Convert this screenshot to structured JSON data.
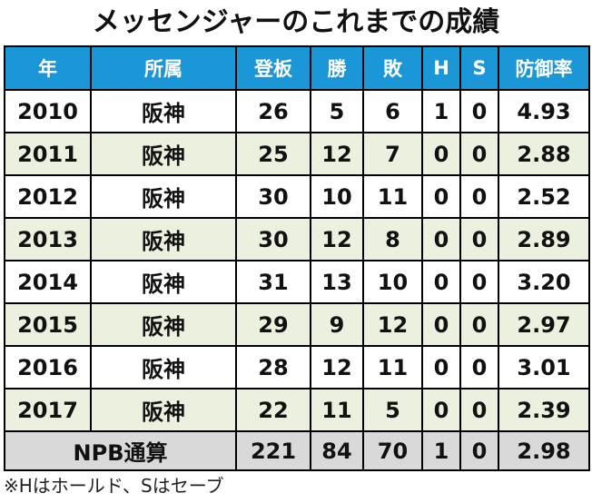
{
  "title": "メッセンジャーのこれまでの成績",
  "headers": [
    "年",
    "所属",
    "登板",
    "勝",
    "敗",
    "H",
    "S",
    "防御率"
  ],
  "rows": [
    [
      "2010",
      "阪神",
      "26",
      "5",
      "6",
      "1",
      "0",
      "4.93"
    ],
    [
      "2011",
      "阪神",
      "25",
      "12",
      "7",
      "0",
      "0",
      "2.88"
    ],
    [
      "2012",
      "阪神",
      "30",
      "10",
      "11",
      "0",
      "0",
      "2.52"
    ],
    [
      "2013",
      "阪神",
      "30",
      "12",
      "8",
      "0",
      "0",
      "2.89"
    ],
    [
      "2014",
      "阪神",
      "31",
      "13",
      "10",
      "0",
      "0",
      "3.20"
    ],
    [
      "2015",
      "阪神",
      "29",
      "9",
      "12",
      "0",
      "0",
      "2.97"
    ],
    [
      "2016",
      "阪神",
      "28",
      "12",
      "11",
      "0",
      "0",
      "3.01"
    ],
    [
      "2017",
      "阪神",
      "22",
      "11",
      "5",
      "0",
      "0",
      "2.39"
    ]
  ],
  "total": {
    "label": "NPB通算",
    "values": [
      "221",
      "84",
      "70",
      "1",
      "0",
      "2.98"
    ]
  },
  "footnote": "※Hはホールド、Sはセーブ",
  "colors": {
    "header_bg": "#1b97d8",
    "alt_row_bg": "#ebf1de",
    "total_bg": "#d9d9d9"
  }
}
